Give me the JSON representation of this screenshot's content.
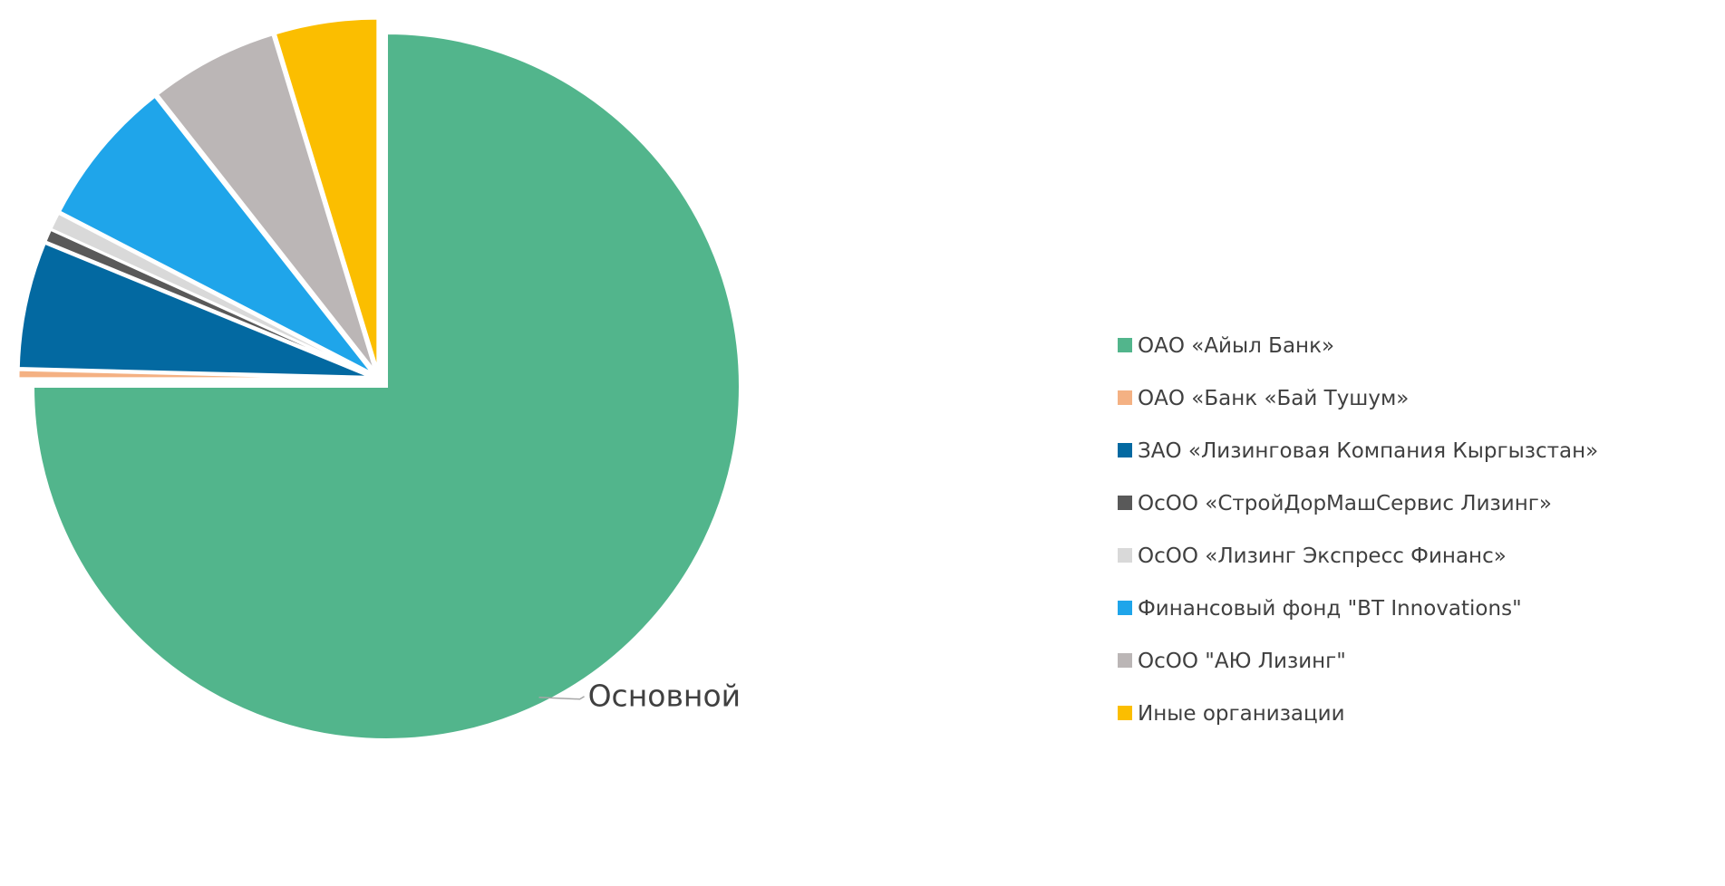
{
  "chart_data": {
    "type": "pie",
    "title": "",
    "legend_position": "right",
    "series": [
      {
        "name": "ОАО «Айыл Банк»",
        "value": 75.0,
        "color": "#52B58C"
      },
      {
        "name": "ОАО «Банк «Бай Тушум»",
        "value": 0.4,
        "color": "#F4B183"
      },
      {
        "name": "ЗАО «Лизинговая Компания Кыргызстан»",
        "value": 5.8,
        "color": "#0369A1"
      },
      {
        "name": "ОсОО «СтройДорМашСервис Лизинг»",
        "value": 0.6,
        "color": "#595959"
      },
      {
        "name": "ОсОО «Лизинг Экспресс Финанс»",
        "value": 0.8,
        "color": "#D9D9D9"
      },
      {
        "name": "Финансовый фонд \"BT Innovations\"",
        "value": 6.8,
        "color": "#1FA5EA"
      },
      {
        "name": "ОсОО \"АЮ Лизинг\"",
        "value": 5.9,
        "color": "#BBB6B6"
      },
      {
        "name": "Иные организации",
        "value": 4.7,
        "color": "#FBBE00"
      }
    ],
    "data_labels": [
      {
        "series_index": 0,
        "text": "Основной"
      }
    ]
  }
}
